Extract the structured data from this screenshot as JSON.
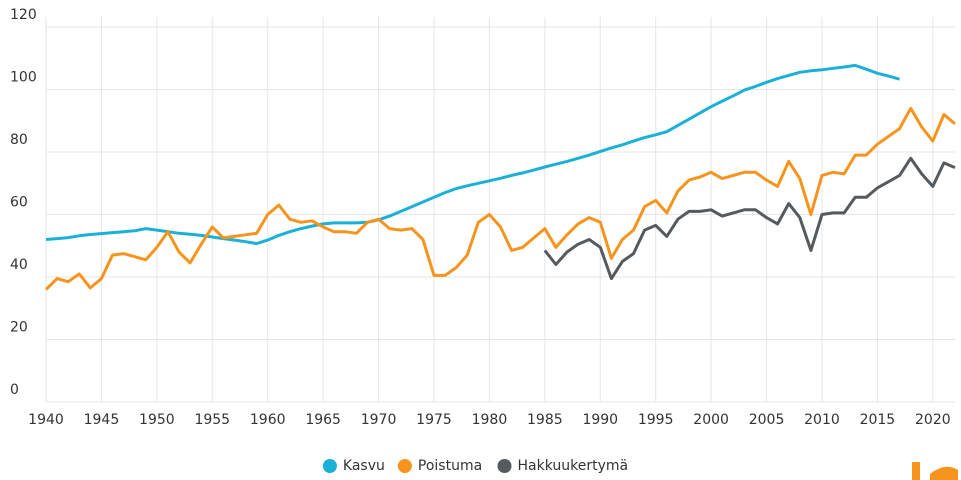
{
  "chart_data": {
    "type": "line",
    "x": [
      1940,
      1941,
      1942,
      1943,
      1944,
      1945,
      1946,
      1947,
      1948,
      1949,
      1950,
      1951,
      1952,
      1953,
      1954,
      1955,
      1956,
      1957,
      1958,
      1959,
      1960,
      1961,
      1962,
      1963,
      1964,
      1965,
      1966,
      1967,
      1968,
      1969,
      1970,
      1971,
      1972,
      1973,
      1974,
      1975,
      1976,
      1977,
      1978,
      1979,
      1980,
      1981,
      1982,
      1983,
      1984,
      1985,
      1986,
      1987,
      1988,
      1989,
      1990,
      1991,
      1992,
      1993,
      1994,
      1995,
      1996,
      1997,
      1998,
      1999,
      2000,
      2001,
      2002,
      2003,
      2004,
      2005,
      2006,
      2007,
      2008,
      2009,
      2010,
      2011,
      2012,
      2013,
      2014,
      2015,
      2016,
      2017,
      2018,
      2019,
      2020,
      2021,
      2022
    ],
    "series": [
      {
        "name": "Kasvu",
        "color": "#1ab0d8",
        "values": [
          52,
          52.3,
          52.6,
          53.2,
          53.6,
          53.9,
          54.2,
          54.5,
          54.8,
          55.5,
          55,
          54.5,
          54,
          53.7,
          53.3,
          52.8,
          52.3,
          51.8,
          51.3,
          50.7,
          51.8,
          53.3,
          54.5,
          55.5,
          56.3,
          57,
          57.3,
          57.3,
          57.3,
          57.5,
          58.3,
          59.5,
          61,
          62.5,
          64,
          65.5,
          67,
          68.3,
          69.2,
          70,
          70.8,
          71.6,
          72.5,
          73.3,
          74.2,
          75.2,
          76.1,
          77,
          78,
          79,
          80.2,
          81.3,
          82.3,
          83.5,
          84.6,
          85.5,
          86.5,
          88.5,
          90.5,
          92.5,
          94.5,
          96.3,
          98,
          99.8,
          101,
          102.3,
          103.5,
          104.5,
          105.5,
          106,
          106.3,
          106.8,
          107.2,
          107.7,
          106.5,
          105.2,
          104.3,
          103.3,
          null,
          null,
          null,
          null,
          null
        ]
      },
      {
        "name": "Poistuma",
        "color": "#f7941d",
        "values": [
          36,
          39.5,
          38.5,
          41,
          36.5,
          39.5,
          47,
          47.5,
          46.5,
          45.5,
          49.5,
          54.5,
          48,
          44.5,
          50.5,
          56,
          52.5,
          53,
          53.5,
          54,
          60,
          63,
          58.5,
          57.5,
          58,
          56,
          54.5,
          54.5,
          54,
          57.5,
          58.5,
          55.5,
          55,
          55.5,
          52,
          40.5,
          40.5,
          43,
          47,
          57.5,
          60,
          56,
          48.5,
          49.5,
          52.5,
          55.5,
          49.5,
          53.5,
          57,
          59,
          57.5,
          46,
          52,
          55,
          62.5,
          64.5,
          60.5,
          67.5,
          71,
          72,
          73.5,
          71.5,
          72.5,
          73.5,
          73.5,
          71,
          69,
          77,
          71.5,
          60,
          72.5,
          73.5,
          73,
          79,
          79,
          82.5,
          85,
          87.5,
          94,
          88,
          83.5,
          92,
          89
        ]
      },
      {
        "name": "Hakkuukertymä",
        "color": "#555a5e",
        "values": [
          null,
          null,
          null,
          null,
          null,
          null,
          null,
          null,
          null,
          null,
          null,
          null,
          null,
          null,
          null,
          null,
          null,
          null,
          null,
          null,
          null,
          null,
          null,
          null,
          null,
          null,
          null,
          null,
          null,
          null,
          null,
          null,
          null,
          null,
          null,
          null,
          null,
          null,
          null,
          null,
          null,
          null,
          null,
          null,
          null,
          48.5,
          44,
          48,
          50.5,
          52,
          49.5,
          39.5,
          45,
          47.5,
          55,
          56.5,
          53,
          58.5,
          61,
          61,
          61.5,
          59.5,
          60.5,
          61.5,
          61.5,
          59,
          57,
          63.5,
          59,
          48.5,
          60,
          60.5,
          60.5,
          65.5,
          65.5,
          68.5,
          70.5,
          72.5,
          78,
          73,
          69,
          76.5,
          75
        ]
      }
    ],
    "xlim": [
      1940,
      2022
    ],
    "xticks": [
      1940,
      1945,
      1950,
      1955,
      1960,
      1965,
      1970,
      1975,
      1980,
      1985,
      1990,
      1995,
      2000,
      2005,
      2010,
      2015,
      2020
    ],
    "ylim": [
      0,
      120
    ],
    "yticks": [
      0,
      20,
      40,
      60,
      80,
      100,
      120
    ],
    "grid": true,
    "legend": "bottom"
  }
}
